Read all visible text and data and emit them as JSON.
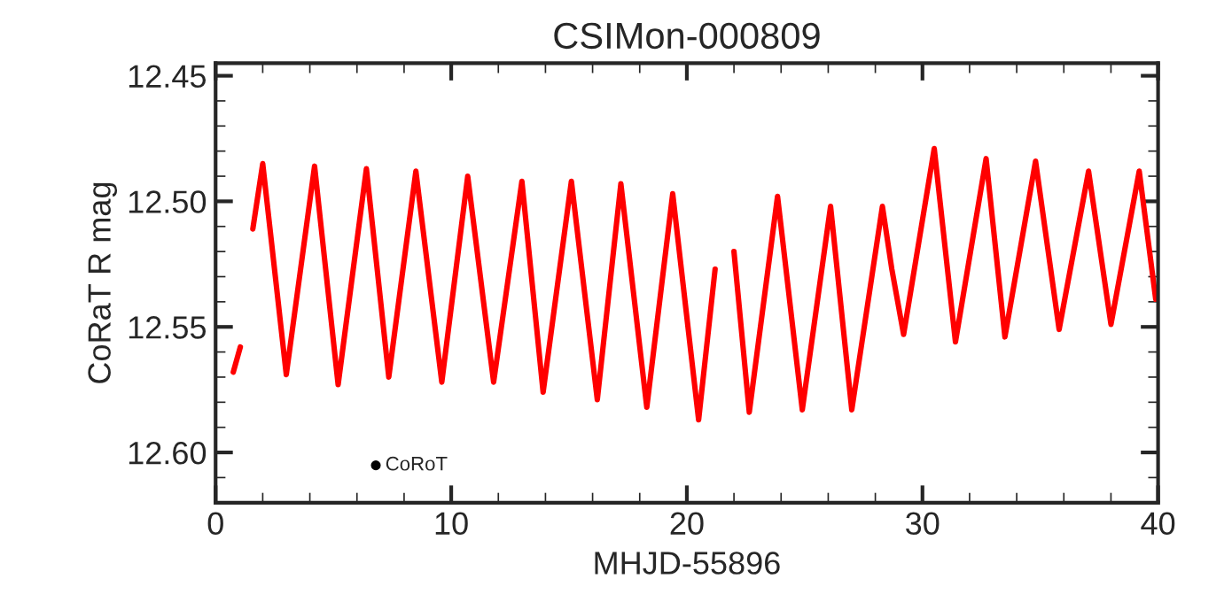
{
  "chart_data": {
    "type": "line",
    "title": "CSIMon-000809",
    "xlabel": "MHJD-55896",
    "ylabel": "CoRaT R mag",
    "x": [
      0.75,
      1.05,
      1.3,
      1.58,
      2.0,
      3.0,
      4.2,
      5.2,
      6.4,
      7.35,
      8.5,
      9.6,
      10.7,
      11.8,
      13.0,
      13.9,
      15.1,
      16.2,
      17.2,
      18.3,
      19.4,
      20.5,
      21.2,
      21.6,
      22.0,
      22.65,
      23.85,
      24.9,
      26.1,
      27.0,
      28.3,
      28.7,
      29.2,
      30.5,
      31.4,
      32.7,
      33.5,
      34.8,
      35.8,
      37.05,
      38.0,
      39.2,
      39.9
    ],
    "series": [
      {
        "color": "#ff0000",
        "values": [
          12.568,
          12.558,
          null,
          12.511,
          12.485,
          12.569,
          12.486,
          12.573,
          12.487,
          12.57,
          12.488,
          12.572,
          12.49,
          12.572,
          12.492,
          12.576,
          12.492,
          12.579,
          12.493,
          12.582,
          12.497,
          12.587,
          12.527,
          null,
          12.52,
          12.584,
          12.498,
          12.583,
          12.502,
          12.583,
          12.502,
          12.527,
          12.553,
          12.479,
          12.556,
          12.483,
          12.554,
          12.484,
          12.551,
          12.488,
          12.549,
          12.488,
          12.539
        ]
      }
    ],
    "annotations": [
      "CoRoT"
    ],
    "xlim": [
      0,
      40
    ],
    "xticks": [
      0,
      10,
      20,
      30,
      40
    ],
    "ylim": [
      12.62,
      12.445
    ],
    "yticks": [
      {
        "value": 12.45,
        "label": "12.45"
      },
      {
        "value": 12.5,
        "label": "12.50"
      },
      {
        "value": 12.55,
        "label": "12.55"
      },
      {
        "value": 12.6,
        "label": "12.60"
      }
    ],
    "line_style": "solid",
    "grid": false,
    "legend": false
  }
}
